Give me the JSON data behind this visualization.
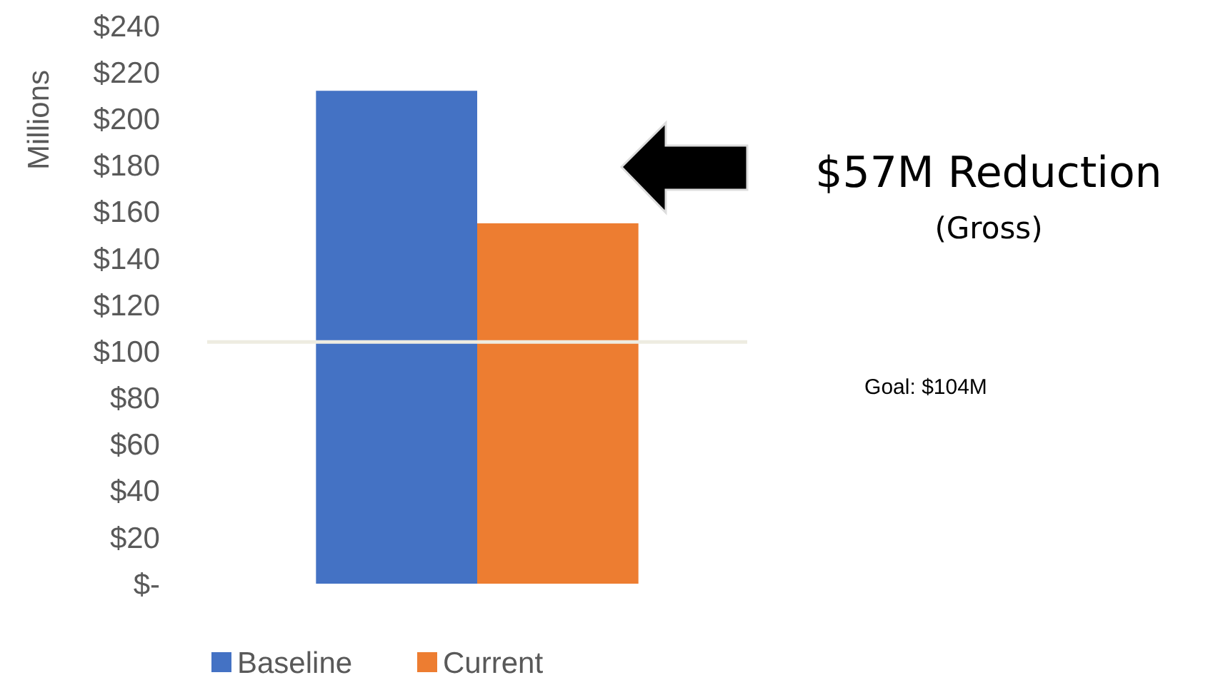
{
  "chart_data": {
    "type": "bar",
    "ylabel": "Millions",
    "categories": [
      null
    ],
    "series": [
      {
        "name": "Baseline",
        "color": "#4472c4",
        "values": [
          212
        ]
      },
      {
        "name": "Current",
        "color": "#ed7d31",
        "values": [
          155
        ]
      }
    ],
    "ylim": [
      0,
      240
    ],
    "yticks": [
      {
        "value": 0,
        "label": "$-"
      },
      {
        "value": 20,
        "label": "$20"
      },
      {
        "value": 40,
        "label": "$40"
      },
      {
        "value": 60,
        "label": "$60"
      },
      {
        "value": 80,
        "label": "$80"
      },
      {
        "value": 100,
        "label": "$100"
      },
      {
        "value": 120,
        "label": "$120"
      },
      {
        "value": 140,
        "label": "$140"
      },
      {
        "value": 160,
        "label": "$160"
      },
      {
        "value": 180,
        "label": "$180"
      },
      {
        "value": 200,
        "label": "$200"
      },
      {
        "value": 220,
        "label": "$220"
      },
      {
        "value": 240,
        "label": "$240"
      }
    ],
    "ref_lines": [
      {
        "axis": "y",
        "value": 104,
        "color": "#eeece1"
      }
    ],
    "annotations": [
      "$57M Reduction",
      "(Gross)",
      "Goal: $104M"
    ],
    "grid": false,
    "legend": "bottom"
  }
}
